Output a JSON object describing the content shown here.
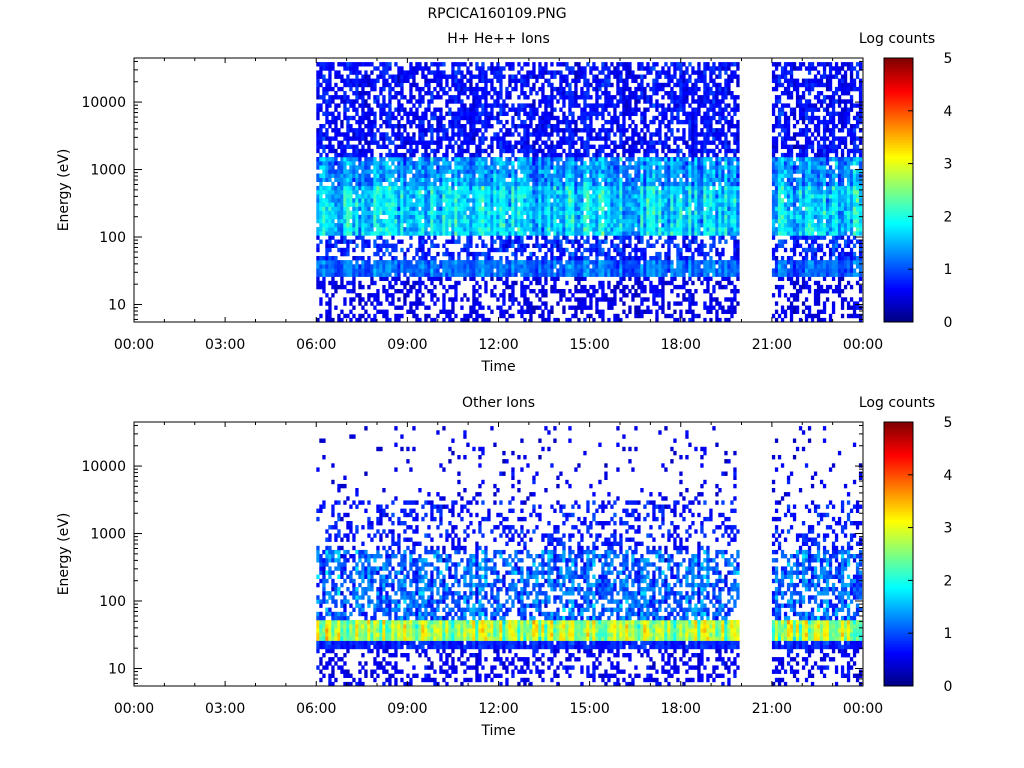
{
  "page_title": "RPCICA160109.PNG",
  "chart_data": [
    {
      "type": "heatmap",
      "title": "H+ He++ Ions",
      "xlabel": "Time",
      "ylabel": "Energy (eV)",
      "y_scale": "log",
      "ylim": [
        5.5,
        45000
      ],
      "yticks": [
        10,
        100,
        1000,
        10000
      ],
      "ytick_labels": [
        "10",
        "100",
        "1000",
        "10000"
      ],
      "xlim_hours": [
        0,
        24
      ],
      "xtick_labels": [
        "00:00",
        "03:00",
        "06:00",
        "09:00",
        "12:00",
        "15:00",
        "18:00",
        "21:00",
        "00:00"
      ],
      "colorbar": {
        "label": "Log counts",
        "range": [
          0,
          5
        ],
        "tick_labels": [
          "0",
          "1",
          "2",
          "3",
          "4",
          "5"
        ],
        "colormap": "jet"
      },
      "data_intervals_hours": [
        [
          6.0,
          19.9
        ],
        [
          21.0,
          23.9
        ]
      ],
      "energy_bands": [
        {
          "e_min": 5.5,
          "e_max": 25,
          "density": 0.45,
          "mean": 0.5,
          "spread": 0.15
        },
        {
          "e_min": 25,
          "e_max": 45,
          "density": 0.95,
          "mean": 1.15,
          "spread": 0.2
        },
        {
          "e_min": 45,
          "e_max": 100,
          "density": 0.55,
          "mean": 0.8,
          "spread": 0.3
        },
        {
          "e_min": 100,
          "e_max": 600,
          "density": 0.97,
          "mean": 1.7,
          "spread": 0.35
        },
        {
          "e_min": 600,
          "e_max": 1500,
          "density": 0.9,
          "mean": 1.35,
          "spread": 0.35
        },
        {
          "e_min": 1500,
          "e_max": 40000,
          "density": 0.65,
          "mean": 0.65,
          "spread": 0.2
        }
      ]
    },
    {
      "type": "heatmap",
      "title": "Other Ions",
      "xlabel": "Time",
      "ylabel": "Energy (eV)",
      "y_scale": "log",
      "ylim": [
        5.5,
        45000
      ],
      "yticks": [
        10,
        100,
        1000,
        10000
      ],
      "ytick_labels": [
        "10",
        "100",
        "1000",
        "10000"
      ],
      "xlim_hours": [
        0,
        24
      ],
      "xtick_labels": [
        "00:00",
        "03:00",
        "06:00",
        "09:00",
        "12:00",
        "15:00",
        "18:00",
        "21:00",
        "00:00"
      ],
      "colorbar": {
        "label": "Log counts",
        "range": [
          0,
          5
        ],
        "tick_labels": [
          "0",
          "1",
          "2",
          "3",
          "4",
          "5"
        ],
        "colormap": "jet"
      },
      "data_intervals_hours": [
        [
          6.0,
          19.9
        ],
        [
          21.0,
          23.9
        ]
      ],
      "energy_bands": [
        {
          "e_min": 5.5,
          "e_max": 20,
          "density": 0.35,
          "mean": 0.55,
          "spread": 0.15
        },
        {
          "e_min": 20,
          "e_max": 25,
          "density": 0.95,
          "mean": 0.8,
          "spread": 0.15
        },
        {
          "e_min": 25,
          "e_max": 55,
          "density": 1.0,
          "mean": 2.7,
          "spread": 0.3
        },
        {
          "e_min": 55,
          "e_max": 600,
          "density": 0.6,
          "mean": 1.1,
          "spread": 0.4
        },
        {
          "e_min": 600,
          "e_max": 3000,
          "density": 0.3,
          "mean": 0.7,
          "spread": 0.2
        },
        {
          "e_min": 3000,
          "e_max": 40000,
          "density": 0.06,
          "mean": 0.5,
          "spread": 0.15
        }
      ]
    }
  ]
}
